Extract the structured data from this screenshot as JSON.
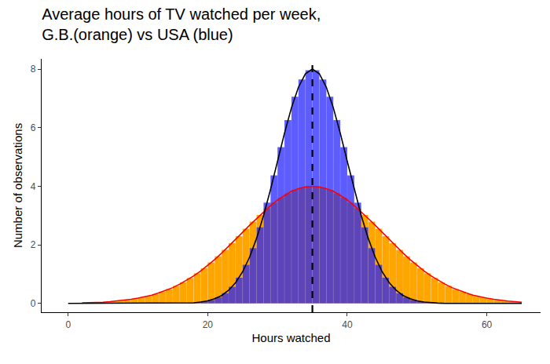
{
  "chart_data": {
    "type": "histogram",
    "title": "Average hours of TV watched per week,\nG.B.(orange) vs USA (blue)",
    "x_label": "Hours watched",
    "y_label": "Number of observations",
    "xlim": [
      -3.8,
      67.7
    ],
    "xticks": [
      0,
      20,
      40,
      60
    ],
    "ylim": [
      -0.3,
      8.35
    ],
    "yticks": [
      0,
      2,
      4,
      6,
      8
    ],
    "grid": false,
    "series": [
      {
        "type": "histogram",
        "color": "#FFA500",
        "bins": [
          0,
          1,
          2,
          3,
          4,
          5,
          6,
          7,
          8,
          9,
          10,
          11,
          12,
          13,
          14,
          15,
          16,
          17,
          18,
          19,
          20,
          21,
          22,
          23,
          24,
          25,
          26,
          27,
          28,
          29,
          30,
          31,
          32,
          33,
          34,
          35,
          36,
          37,
          38,
          39,
          40,
          41,
          42,
          43,
          44,
          45,
          46,
          47,
          48,
          49,
          50,
          51,
          52,
          53,
          54,
          55,
          56,
          57,
          58,
          59,
          60,
          61,
          62,
          63,
          64,
          65
        ],
        "values": [
          0.01,
          0.01,
          0.02,
          0.03,
          0.04,
          0.05,
          0.07,
          0.09,
          0.12,
          0.15,
          0.2,
          0.25,
          0.32,
          0.4,
          0.49,
          0.6,
          0.72,
          0.87,
          1.03,
          1.2,
          1.4,
          1.61,
          1.83,
          2.06,
          2.3,
          2.55,
          2.79,
          3.02,
          3.24,
          3.44,
          3.61,
          3.76,
          3.88,
          3.96,
          4.0,
          4.0,
          3.96,
          3.88,
          3.76,
          3.61,
          3.44,
          3.24,
          3.02,
          2.79,
          2.55,
          2.3,
          2.06,
          1.83,
          1.61,
          1.4,
          1.2,
          1.03,
          0.87,
          0.72,
          0.6,
          0.49,
          0.4,
          0.32,
          0.25,
          0.2,
          0.15,
          0.12,
          0.09,
          0.07,
          0.05
        ]
      },
      {
        "type": "line",
        "color": "#FF0000",
        "line_style": "solid",
        "x": [
          2,
          3,
          4,
          5,
          6,
          7,
          8,
          9,
          10,
          11,
          12,
          13,
          14,
          15,
          16,
          17,
          18,
          19,
          20,
          21,
          22,
          23,
          24,
          25,
          26,
          27,
          28,
          29,
          30,
          31,
          32,
          33,
          34,
          35,
          36,
          37,
          38,
          39,
          40,
          41,
          42,
          43,
          44,
          45,
          46,
          47,
          48,
          49,
          50,
          51,
          52,
          53,
          54,
          55,
          56,
          57,
          58,
          59,
          60,
          61,
          62,
          63,
          64,
          65
        ],
        "values": [
          0.02,
          0.02,
          0.03,
          0.04,
          0.06,
          0.08,
          0.1,
          0.14,
          0.18,
          0.22,
          0.28,
          0.36,
          0.44,
          0.54,
          0.66,
          0.79,
          0.94,
          1.11,
          1.3,
          1.5,
          1.72,
          1.95,
          2.18,
          2.43,
          2.67,
          2.9,
          3.13,
          3.34,
          3.53,
          3.69,
          3.83,
          3.92,
          3.98,
          4.0,
          3.98,
          3.92,
          3.83,
          3.69,
          3.53,
          3.34,
          3.13,
          2.9,
          2.67,
          2.43,
          2.18,
          1.95,
          1.72,
          1.5,
          1.3,
          1.11,
          0.94,
          0.79,
          0.66,
          0.54,
          0.44,
          0.36,
          0.28,
          0.22,
          0.18,
          0.14,
          0.1,
          0.08,
          0.06,
          0.04
        ]
      },
      {
        "type": "histogram",
        "color": "#1F1FFF",
        "bins": [
          0,
          1,
          2,
          3,
          4,
          5,
          6,
          7,
          8,
          9,
          10,
          11,
          12,
          13,
          14,
          15,
          16,
          17,
          18,
          19,
          20,
          21,
          22,
          23,
          24,
          25,
          26,
          27,
          28,
          29,
          30,
          31,
          32,
          33,
          34,
          35,
          36,
          37,
          38,
          39,
          40,
          41,
          42,
          43,
          44,
          45,
          46,
          47,
          48,
          49,
          50,
          51,
          52,
          53,
          54,
          55,
          56,
          57,
          58,
          59,
          60,
          61,
          62,
          63,
          64,
          65
        ],
        "values": [
          0,
          0,
          0,
          0,
          0,
          0,
          0,
          0,
          0,
          0,
          0,
          0,
          0,
          0,
          0,
          0,
          0.01,
          0.02,
          0.03,
          0.07,
          0.12,
          0.21,
          0.35,
          0.57,
          0.88,
          1.32,
          1.89,
          2.6,
          3.44,
          4.37,
          5.34,
          6.26,
          7.06,
          7.65,
          7.96,
          7.96,
          7.65,
          7.06,
          6.26,
          5.34,
          4.37,
          3.44,
          2.6,
          1.89,
          1.32,
          0.88,
          0.57,
          0.35,
          0.21,
          0.12,
          0.07,
          0.03,
          0.02,
          0.01,
          0,
          0,
          0,
          0,
          0,
          0,
          0,
          0,
          0,
          0,
          0
        ]
      },
      {
        "type": "line",
        "color": "#000000",
        "line_style": "solid",
        "x": [
          0,
          1,
          2,
          3,
          4,
          5,
          6,
          7,
          8,
          9,
          10,
          11,
          12,
          13,
          14,
          15,
          16,
          17,
          18,
          19,
          20,
          21,
          22,
          23,
          24,
          25,
          26,
          27,
          28,
          29,
          30,
          31,
          32,
          33,
          34,
          35,
          36,
          37,
          38,
          39,
          40,
          41,
          42,
          43,
          44,
          45,
          46,
          47,
          48,
          49,
          50,
          51,
          52,
          53,
          54,
          55,
          56,
          57,
          58,
          59,
          60,
          61,
          62,
          63,
          64,
          65
        ],
        "values": [
          0,
          0,
          0,
          0,
          0,
          0,
          0,
          0,
          0,
          0,
          0,
          0,
          0,
          0,
          0,
          0,
          0,
          0.01,
          0.02,
          0.05,
          0.09,
          0.16,
          0.27,
          0.45,
          0.71,
          1.08,
          1.58,
          2.22,
          3.0,
          3.89,
          4.85,
          5.81,
          6.68,
          7.38,
          7.84,
          8.0,
          7.84,
          7.38,
          6.68,
          5.81,
          4.85,
          3.89,
          3.0,
          2.22,
          1.58,
          1.08,
          0.71,
          0.45,
          0.27,
          0.16,
          0.09,
          0.05,
          0.02,
          0.01,
          0,
          0,
          0,
          0,
          0,
          0,
          0,
          0,
          0,
          0,
          0,
          0
        ]
      },
      {
        "type": "line",
        "color": "#000000",
        "line_style": "dashed",
        "x": [
          35,
          35
        ],
        "values": [
          -0.3,
          8.35
        ]
      }
    ]
  }
}
